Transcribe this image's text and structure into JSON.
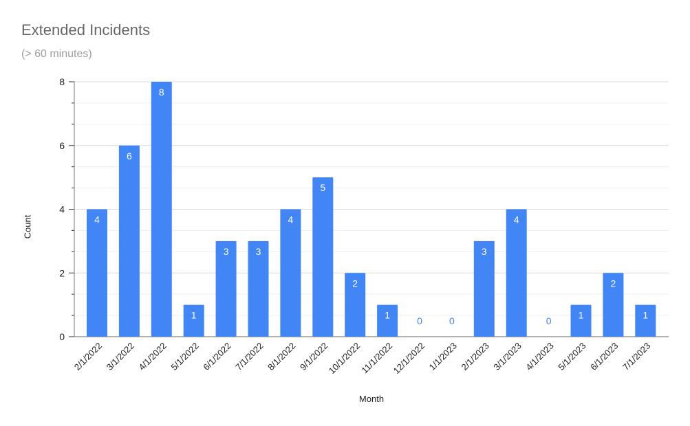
{
  "chart_data": {
    "type": "bar",
    "title": "Extended Incidents",
    "subtitle": "(> 60 minutes)",
    "xlabel": "Month",
    "ylabel": "Count",
    "ylim": [
      0,
      8
    ],
    "yticks": [
      0,
      2,
      4,
      6,
      8
    ],
    "grid": true,
    "legend": "none",
    "bar_color": "#4285f4",
    "categories": [
      "2/1/2022",
      "3/1/2022",
      "4/1/2022",
      "5/1/2022",
      "6/1/2022",
      "7/1/2022",
      "8/1/2022",
      "9/1/2022",
      "10/1/2022",
      "11/1/2022",
      "12/1/2022",
      "1/1/2023",
      "2/1/2023",
      "3/1/2023",
      "4/1/2023",
      "5/1/2023",
      "6/1/2023",
      "7/1/2023"
    ],
    "values": [
      4,
      6,
      8,
      1,
      3,
      3,
      4,
      5,
      2,
      1,
      0,
      0,
      3,
      4,
      0,
      1,
      2,
      1
    ],
    "data_labels": true
  }
}
